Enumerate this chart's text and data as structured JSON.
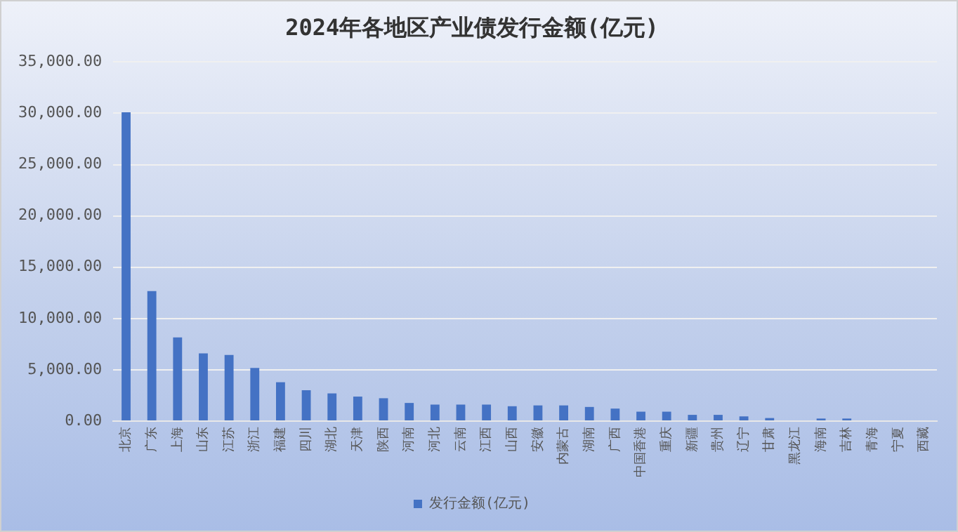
{
  "chart_data": {
    "type": "bar",
    "title": "2024年各地区产业债发行金额(亿元)",
    "categories": [
      "北京",
      "广东",
      "上海",
      "山东",
      "江苏",
      "浙江",
      "福建",
      "四川",
      "湖北",
      "天津",
      "陕西",
      "河南",
      "河北",
      "云南",
      "江西",
      "山西",
      "安徽",
      "内蒙古",
      "湖南",
      "广西",
      "中国香港",
      "重庆",
      "新疆",
      "贵州",
      "辽宁",
      "甘肃",
      "黑龙江",
      "海南",
      "吉林",
      "青海",
      "宁夏",
      "西藏"
    ],
    "series": [
      {
        "name": "发行金额(亿元)",
        "color": "#4472c4",
        "values": [
          30100,
          12670,
          8150,
          6600,
          6440,
          5190,
          3790,
          3010,
          2700,
          2390,
          2230,
          1770,
          1610,
          1610,
          1610,
          1450,
          1530,
          1530,
          1380,
          1220,
          920,
          920,
          610,
          610,
          460,
          300,
          0,
          250,
          250,
          0,
          0,
          0
        ]
      }
    ],
    "ylim": [
      0,
      35000
    ],
    "yticks": [
      {
        "value": 0,
        "label": "0.00"
      },
      {
        "value": 5000,
        "label": "5,000.00"
      },
      {
        "value": 10000,
        "label": "10,000.00"
      },
      {
        "value": 15000,
        "label": "15,000.00"
      },
      {
        "value": 20000,
        "label": "20,000.00"
      },
      {
        "value": 25000,
        "label": "25,000.00"
      },
      {
        "value": 30000,
        "label": "30,000.00"
      },
      {
        "value": 35000,
        "label": "35,000.00"
      }
    ],
    "grid": "y",
    "legend": "bottom"
  }
}
